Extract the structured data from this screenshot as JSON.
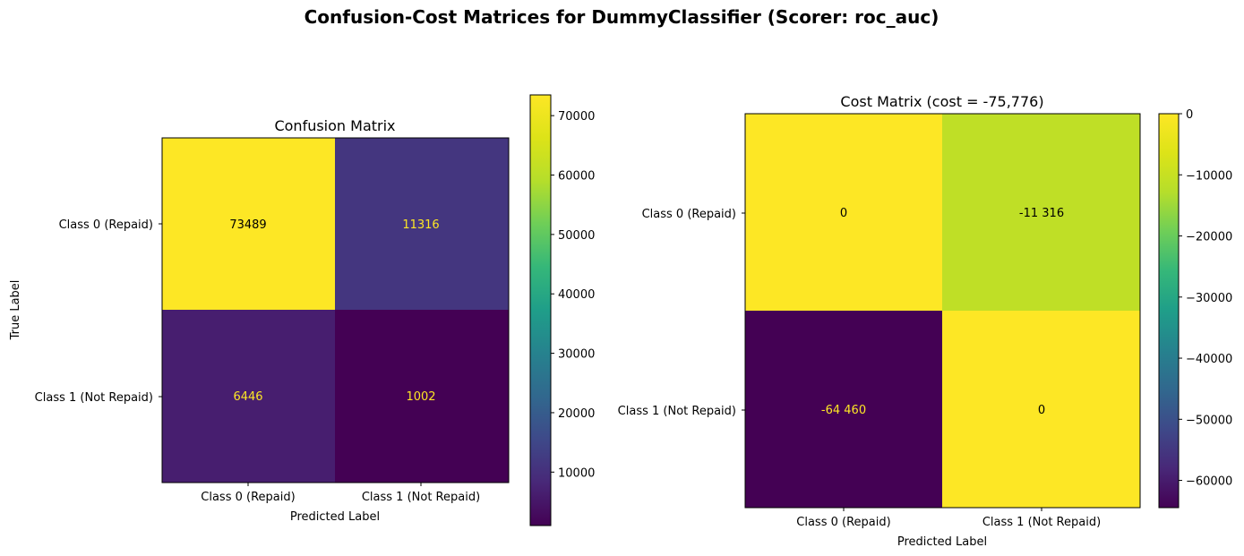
{
  "figure": {
    "title": "Confusion-Cost Matrices for DummyClassifier (Scorer: roc_auc)"
  },
  "chart_data": [
    {
      "type": "heatmap",
      "title": "Confusion Matrix",
      "xlabel": "Predicted Label",
      "ylabel": "True Label",
      "x_categories": [
        "Class 0 (Repaid)",
        "Class 1 (Not Repaid)"
      ],
      "y_categories": [
        "Class 0 (Repaid)",
        "Class 1 (Not Repaid)"
      ],
      "values": [
        [
          73489,
          11316
        ],
        [
          6446,
          1002
        ]
      ],
      "cell_labels": [
        [
          "73489",
          "11316"
        ],
        [
          "6446",
          "1002"
        ]
      ],
      "colormap": "viridis",
      "vmin": 1002,
      "vmax": 73489,
      "colorbar_ticks": [
        10000,
        20000,
        30000,
        40000,
        50000,
        60000,
        70000
      ],
      "colorbar_tick_labels": [
        "10000",
        "20000",
        "30000",
        "40000",
        "50000",
        "60000",
        "70000"
      ]
    },
    {
      "type": "heatmap",
      "title": "Cost Matrix (cost = -75,776)",
      "xlabel": "Predicted Label",
      "ylabel": "",
      "x_categories": [
        "Class 0 (Repaid)",
        "Class 1 (Not Repaid)"
      ],
      "y_categories": [
        "Class 0 (Repaid)",
        "Class 1 (Not Repaid)"
      ],
      "values": [
        [
          0,
          -11316
        ],
        [
          -64460,
          0
        ]
      ],
      "cell_labels": [
        [
          "0",
          "-11 316"
        ],
        [
          "-64 460",
          "0"
        ]
      ],
      "colormap": "viridis",
      "vmin": -64460,
      "vmax": 0,
      "colorbar_ticks": [
        0,
        -10000,
        -20000,
        -30000,
        -40000,
        -50000,
        -60000
      ],
      "colorbar_tick_labels": [
        "0",
        "−10000",
        "−20000",
        "−30000",
        "−40000",
        "−50000",
        "−60000"
      ]
    }
  ]
}
